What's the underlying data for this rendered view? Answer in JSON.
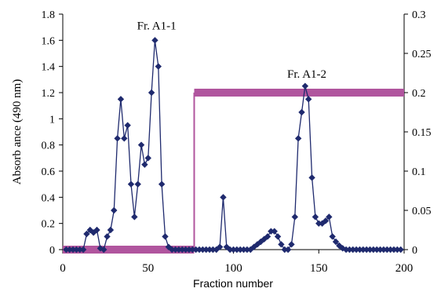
{
  "chart_data": {
    "type": "line",
    "xlabel": "Fraction number",
    "ylabel": "Absorb ance (490 nm)",
    "xlim": [
      0,
      200
    ],
    "ylim": [
      0,
      1.8
    ],
    "y2lim": [
      0,
      0.3
    ],
    "xticks": [
      "0",
      "50",
      "100",
      "150",
      "200"
    ],
    "yticks": [
      "0",
      "0.2",
      "0.4",
      "0.6",
      "0.8",
      "1",
      "1.2",
      "1.4",
      "1.6",
      "1.8"
    ],
    "y2ticks": [
      "0",
      "0.05",
      "0.1",
      "0.15",
      "0.2",
      "0.25",
      "0.3"
    ],
    "annotations": [
      {
        "text": "Fr. A1-1",
        "x": 55,
        "y": 1.66
      },
      {
        "text": "Fr. A1-2",
        "x": 143,
        "y": 1.29
      }
    ],
    "series": [
      {
        "color": "#1f2a6e",
        "marker": "diamond",
        "axis": "left",
        "points": [
          [
            2,
            0
          ],
          [
            4,
            0
          ],
          [
            6,
            0
          ],
          [
            8,
            0
          ],
          [
            10,
            0
          ],
          [
            12,
            0
          ],
          [
            14,
            0.12
          ],
          [
            16,
            0.15
          ],
          [
            18,
            0.13
          ],
          [
            20,
            0.15
          ],
          [
            22,
            0.01
          ],
          [
            24,
            0
          ],
          [
            26,
            0.1
          ],
          [
            28,
            0.15
          ],
          [
            30,
            0.3
          ],
          [
            32,
            0.85
          ],
          [
            34,
            1.15
          ],
          [
            36,
            0.85
          ],
          [
            38,
            0.95
          ],
          [
            40,
            0.5
          ],
          [
            42,
            0.25
          ],
          [
            44,
            0.5
          ],
          [
            46,
            0.8
          ],
          [
            48,
            0.65
          ],
          [
            50,
            0.7
          ],
          [
            52,
            1.2
          ],
          [
            54,
            1.6
          ],
          [
            56,
            1.4
          ],
          [
            58,
            0.5
          ],
          [
            60,
            0.1
          ],
          [
            62,
            0.02
          ],
          [
            64,
            0
          ],
          [
            66,
            0
          ],
          [
            68,
            0
          ],
          [
            70,
            0
          ],
          [
            72,
            0
          ],
          [
            74,
            0
          ],
          [
            76,
            0
          ],
          [
            78,
            0
          ],
          [
            80,
            0
          ],
          [
            82,
            0
          ],
          [
            84,
            0
          ],
          [
            86,
            0
          ],
          [
            88,
            0
          ],
          [
            90,
            0
          ],
          [
            92,
            0.02
          ],
          [
            94,
            0.4
          ],
          [
            96,
            0.02
          ],
          [
            98,
            0
          ],
          [
            100,
            0
          ],
          [
            102,
            0
          ],
          [
            104,
            0
          ],
          [
            106,
            0
          ],
          [
            108,
            0
          ],
          [
            110,
            0
          ],
          [
            112,
            0.02
          ],
          [
            114,
            0.04
          ],
          [
            116,
            0.06
          ],
          [
            118,
            0.08
          ],
          [
            120,
            0.1
          ],
          [
            122,
            0.14
          ],
          [
            124,
            0.14
          ],
          [
            126,
            0.1
          ],
          [
            128,
            0.04
          ],
          [
            130,
            0
          ],
          [
            132,
            0
          ],
          [
            134,
            0.04
          ],
          [
            136,
            0.25
          ],
          [
            138,
            0.85
          ],
          [
            140,
            1.05
          ],
          [
            142,
            1.25
          ],
          [
            144,
            1.15
          ],
          [
            146,
            0.55
          ],
          [
            148,
            0.25
          ],
          [
            150,
            0.2
          ],
          [
            152,
            0.2
          ],
          [
            154,
            0.22
          ],
          [
            156,
            0.25
          ],
          [
            158,
            0.1
          ],
          [
            160,
            0.06
          ],
          [
            162,
            0.03
          ],
          [
            164,
            0.01
          ],
          [
            166,
            0
          ],
          [
            168,
            0
          ],
          [
            170,
            0
          ],
          [
            172,
            0
          ],
          [
            174,
            0
          ],
          [
            176,
            0
          ],
          [
            178,
            0
          ],
          [
            180,
            0
          ],
          [
            182,
            0
          ],
          [
            184,
            0
          ],
          [
            186,
            0
          ],
          [
            188,
            0
          ],
          [
            190,
            0
          ],
          [
            192,
            0
          ],
          [
            194,
            0
          ],
          [
            196,
            0
          ],
          [
            198,
            0
          ]
        ]
      },
      {
        "color": "#b0559e",
        "marker": "none",
        "axis": "right",
        "points": [
          [
            0,
            0
          ],
          [
            77,
            0
          ],
          [
            77,
            0.2
          ],
          [
            200,
            0.2
          ]
        ]
      }
    ]
  }
}
